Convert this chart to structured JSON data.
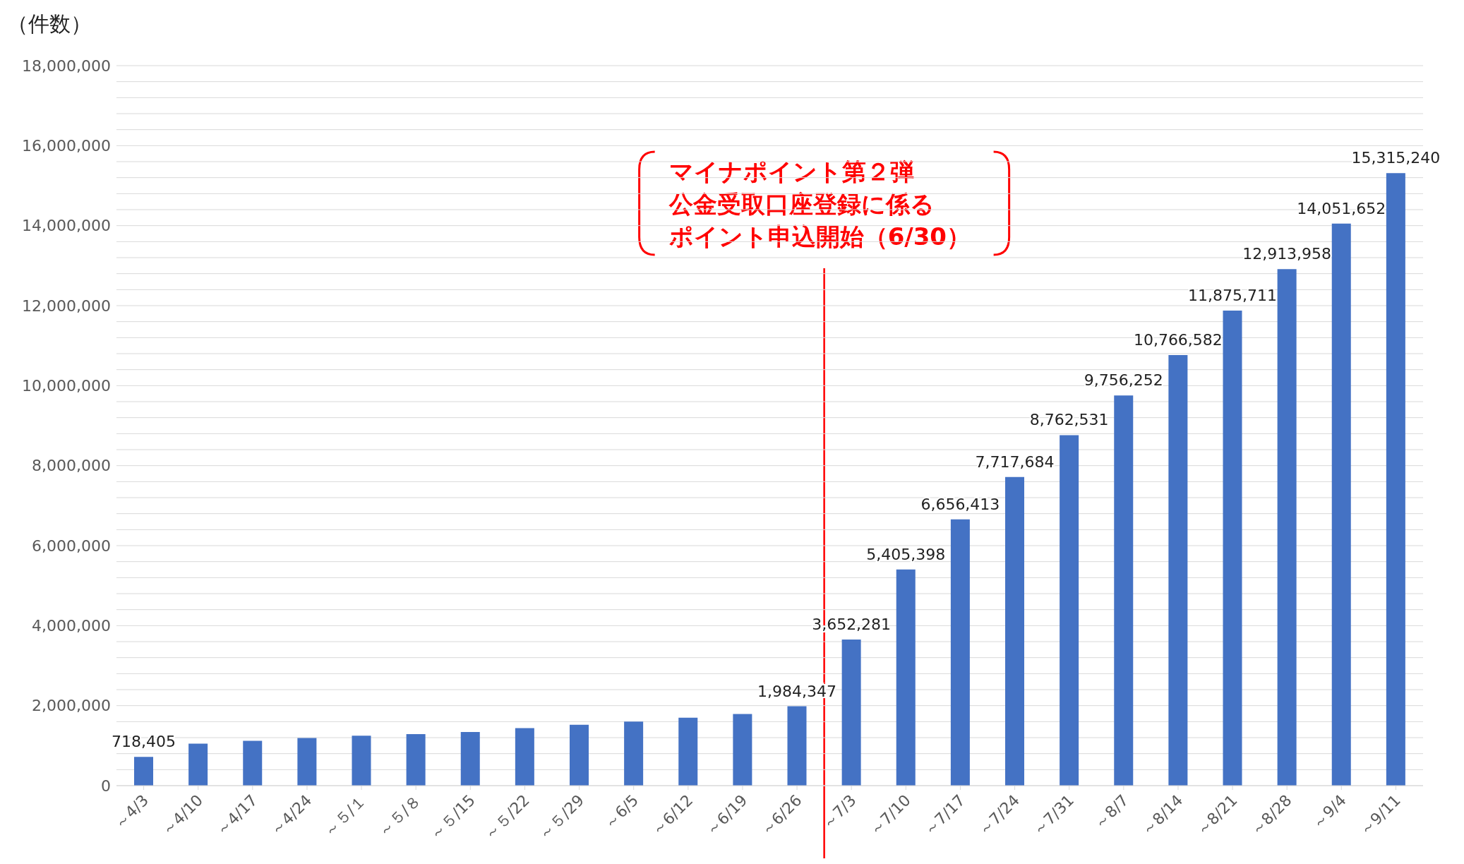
{
  "chart_data": {
    "type": "bar",
    "ylabel": "（件数）",
    "categories": [
      "～4/3",
      "～4/10",
      "～4/17",
      "～4/24",
      "～５/１",
      "～５/８",
      "～５/15",
      "～５/22",
      "～５/29",
      "～6/5",
      "～6/12",
      "～6/19",
      "～6/26",
      "～7/3",
      "～7/10",
      "～7/17",
      "～7/24",
      "～7/31",
      "～8/7",
      "～8/14",
      "～8/21",
      "～8/28",
      "～9/4",
      "～9/11"
    ],
    "values": [
      718405,
      1050000,
      1120000,
      1190000,
      1250000,
      1290000,
      1340000,
      1440000,
      1520000,
      1600000,
      1700000,
      1790000,
      1984347,
      3652281,
      5405398,
      6656413,
      7717684,
      8762531,
      9756252,
      10766582,
      11875711,
      12913958,
      14051652,
      15315240
    ],
    "value_labels": [
      "718,405",
      null,
      null,
      null,
      null,
      null,
      null,
      null,
      null,
      null,
      null,
      null,
      "1,984,347",
      "3,652,281",
      "5,405,398",
      "6,656,413",
      "7,717,684",
      "8,762,531",
      "9,756,252",
      "10,766,582",
      "11,875,711",
      "12,913,958",
      "14,051,652",
      "15,315,240"
    ],
    "color": "#4472c4",
    "ylim": [
      0,
      18000000
    ],
    "yticks": [
      0,
      {
        "value": 400000,
        "label": null
      },
      {
        "value": 800000,
        "label": null
      },
      {
        "value": 1200000,
        "label": null
      },
      {
        "value": 1600000,
        "label": null
      },
      {
        "value": 2000000,
        "label": "2,000,000"
      },
      {
        "value": 2400000,
        "label": null
      },
      {
        "value": 2800000,
        "label": null
      },
      {
        "value": 3200000,
        "label": null
      },
      {
        "value": 3600000,
        "label": null
      },
      {
        "value": 4000000,
        "label": "4,000,000"
      },
      {
        "value": 4400000,
        "label": null
      },
      {
        "value": 4800000,
        "label": null
      },
      {
        "value": 5200000,
        "label": null
      },
      {
        "value": 5600000,
        "label": null
      },
      {
        "value": 6000000,
        "label": "6,000,000"
      },
      {
        "value": 6400000,
        "label": null
      },
      {
        "value": 6800000,
        "label": null
      },
      {
        "value": 7200000,
        "label": null
      },
      {
        "value": 7600000,
        "label": null
      },
      {
        "value": 8000000,
        "label": "8,000,000"
      },
      {
        "value": 8400000,
        "label": null
      },
      {
        "value": 8800000,
        "label": null
      },
      {
        "value": 9200000,
        "label": null
      },
      {
        "value": 9600000,
        "label": null
      },
      {
        "value": 10000000,
        "label": "10,000,000"
      },
      {
        "value": 10400000,
        "label": null
      },
      {
        "value": 10800000,
        "label": null
      },
      {
        "value": 11200000,
        "label": null
      },
      {
        "value": 11600000,
        "label": null
      },
      {
        "value": 12000000,
        "label": "12,000,000"
      },
      {
        "value": 12400000,
        "label": null
      },
      {
        "value": 12800000,
        "label": null
      },
      {
        "value": 13200000,
        "label": null
      },
      {
        "value": 13600000,
        "label": null
      },
      {
        "value": 14000000,
        "label": "14,000,000"
      },
      {
        "value": 14400000,
        "label": null
      },
      {
        "value": 14800000,
        "label": null
      },
      {
        "value": 15200000,
        "label": null
      },
      {
        "value": 15600000,
        "label": null
      },
      {
        "value": 16000000,
        "label": "16,000,000"
      },
      {
        "value": 16400000,
        "label": null
      },
      {
        "value": 16800000,
        "label": null
      },
      {
        "value": 17200000,
        "label": null
      },
      {
        "value": 17600000,
        "label": null
      },
      {
        "value": 18000000,
        "label": "18,000,000"
      }
    ],
    "grid": "y",
    "legend": false,
    "annotations": [
      "マイナポイント第２弾",
      "公金受取口座登録に係る",
      "ポイント申込開始（6/30）"
    ],
    "ref_lines": [
      {
        "axis": "x",
        "value": "～7/3",
        "color": "#ff0000"
      }
    ]
  }
}
